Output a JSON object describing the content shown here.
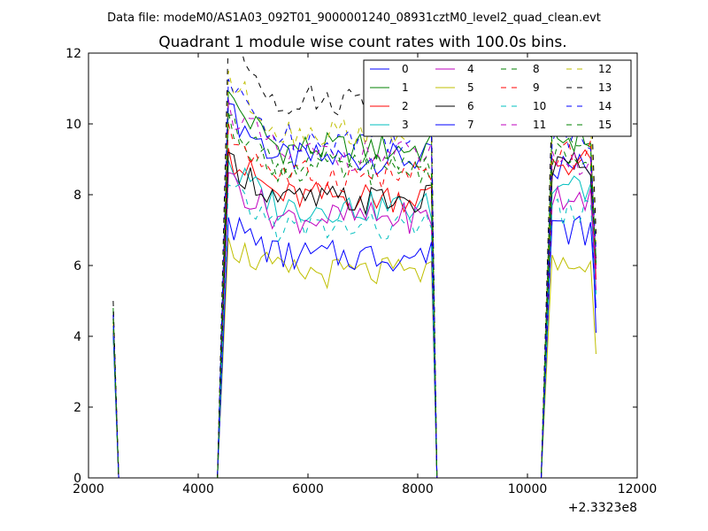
{
  "figure": {
    "suptitle": "Data file: modeM0/AS1A03_092T01_9000001240_08931cztM0_level2_quad_clean.evt"
  },
  "chart_data": {
    "type": "line",
    "title": "Quadrant 1 module wise count rates with 100.0s bins.",
    "xlabel": "",
    "ylabel": "",
    "x_offset_label": "+2.3323e8",
    "xlim": [
      2000,
      12000
    ],
    "ylim": [
      0,
      12
    ],
    "xticks": [
      2000,
      4000,
      6000,
      8000,
      10000,
      12000
    ],
    "xtick_labels": [
      "2000",
      "4000",
      "6000",
      "8000",
      "10000",
      "12000"
    ],
    "yticks": [
      0,
      2,
      4,
      6,
      8,
      10,
      12
    ],
    "ytick_labels": [
      "0",
      "2",
      "4",
      "6",
      "8",
      "10",
      "12"
    ],
    "grid": false,
    "legend_position": "top-right",
    "legend_columns": 4,
    "bin_size_s": 100,
    "segments": [
      {
        "x_start": 2450,
        "x_end": 2450,
        "zero_until": 4400
      },
      {
        "x_start": 4550,
        "x_end": 8250,
        "zero_until": 10250
      },
      {
        "x_start": 10450,
        "x_end": 11250
      }
    ],
    "series": [
      {
        "name": "0",
        "color": "#0000ff",
        "dash": "solid",
        "start": 4.3,
        "level": 9.2,
        "level2": 8.8,
        "end": 4.1
      },
      {
        "name": "1",
        "color": "#008000",
        "dash": "solid",
        "start": 4.8,
        "level": 9.5,
        "level2": 9.6,
        "end": 6.0
      },
      {
        "name": "2",
        "color": "#ff0000",
        "dash": "solid",
        "start": 4.6,
        "level": 8.1,
        "level2": 8.9,
        "end": 5.6
      },
      {
        "name": "3",
        "color": "#00bfbf",
        "dash": "solid",
        "start": 4.0,
        "level": 7.8,
        "level2": 8.2,
        "end": 5.2
      },
      {
        "name": "4",
        "color": "#bf00bf",
        "dash": "solid",
        "start": 4.5,
        "level": 7.5,
        "level2": 8.0,
        "end": 5.3
      },
      {
        "name": "5",
        "color": "#bfbf00",
        "dash": "solid",
        "start": 4.2,
        "level": 5.9,
        "level2": 6.0,
        "end": 3.5
      },
      {
        "name": "6",
        "color": "#000000",
        "dash": "solid",
        "start": 4.4,
        "level": 8.0,
        "level2": 8.8,
        "end": 6.2
      },
      {
        "name": "7",
        "color": "#0000ff",
        "dash": "solid",
        "start": 4.1,
        "level": 6.4,
        "level2": 7.0,
        "end": 4.8
      },
      {
        "name": "8",
        "color": "#008000",
        "dash": "dashed",
        "start": 4.7,
        "level": 8.9,
        "level2": 9.4,
        "end": 6.0
      },
      {
        "name": "9",
        "color": "#ff0000",
        "dash": "dashed",
        "start": 4.6,
        "level": 8.7,
        "level2": 9.1,
        "end": 5.8
      },
      {
        "name": "10",
        "color": "#00bfbf",
        "dash": "dashed",
        "start": 4.3,
        "level": 7.2,
        "level2": 7.5,
        "end": 5.0
      },
      {
        "name": "11",
        "color": "#bf00bf",
        "dash": "dashed",
        "start": 4.5,
        "level": 9.3,
        "level2": 9.0,
        "end": 5.9
      },
      {
        "name": "12",
        "color": "#bfbf00",
        "dash": "dashed",
        "start": 4.4,
        "level": 10.0,
        "level2": 10.3,
        "end": 6.6
      },
      {
        "name": "13",
        "color": "#000000",
        "dash": "dashed",
        "start": 5.0,
        "level": 10.9,
        "level2": 10.8,
        "end": 6.9
      },
      {
        "name": "14",
        "color": "#0000ff",
        "dash": "dashed",
        "start": 4.6,
        "level": 9.8,
        "level2": 9.7,
        "end": 6.4
      },
      {
        "name": "15",
        "color": "#008000",
        "dash": "dashed",
        "start": 4.5,
        "level": 9.0,
        "level2": 9.2,
        "end": 6.1
      }
    ]
  }
}
